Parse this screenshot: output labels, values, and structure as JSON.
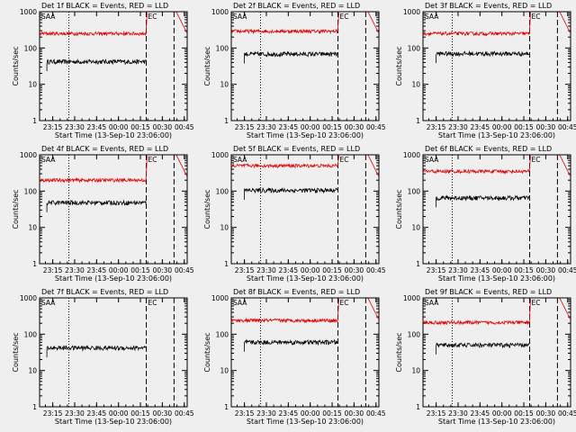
{
  "chart_data": {
    "type": "line",
    "scale_y": "log",
    "ylim": [
      1,
      1000
    ],
    "y_ticks": [
      "1",
      "10",
      "100",
      "1000"
    ],
    "x_ticks": [
      "23:15",
      "23:30",
      "23:45",
      "00:00",
      "00:15",
      "00:30",
      "00:45"
    ],
    "x_tick_times": [
      "2010-09-13T23:15",
      "2010-09-13T23:30",
      "2010-09-13T23:45",
      "2010-09-14T00:00",
      "2010-09-14T00:15",
      "2010-09-14T00:30",
      "2010-09-14T00:45"
    ],
    "x_range": [
      "2010-09-13T23:06",
      "2010-09-14T00:47"
    ],
    "ylabel": "Counts/sec",
    "grid": false,
    "panel_markers": [
      "SAA",
      "EC"
    ],
    "markers": {
      "dotted": "2010-09-13T23:26",
      "dashed": [
        "2010-09-14T00:19",
        "2010-09-14T00:38"
      ]
    },
    "panels": [
      {
        "title": "Det 1f BLACK = Events, RED = LLD",
        "xlabel": "Start Time (13-Sep-10 23:06:00)",
        "red": 250,
        "black": 42,
        "black_start": "2010-09-13T23:11"
      },
      {
        "title": "Det 2f BLACK = Events, RED = LLD",
        "xlabel": "Start Time (13-Sep-10 23:06:00)",
        "red": 290,
        "black": 68,
        "black_start": "2010-09-13T23:15"
      },
      {
        "title": "Det 3f BLACK = Events, RED = LLD",
        "xlabel": "Start Time (13-Sep-10 23:06:00)",
        "red": 250,
        "black": 70,
        "black_start": "2010-09-13T23:15"
      },
      {
        "title": "Det 4f BLACK = Events, RED = LLD",
        "xlabel": "Start Time (13-Sep-10 23:06:00)",
        "red": 200,
        "black": 48,
        "black_start": "2010-09-13T23:11"
      },
      {
        "title": "Det 5f BLACK = Events, RED = LLD",
        "xlabel": "Start Time (13-Sep-10 23:06:00)",
        "red": 500,
        "black": 105,
        "black_start": "2010-09-13T23:15"
      },
      {
        "title": "Det 6f BLACK = Events, RED = LLD",
        "xlabel": "Start Time (13-Sep-10 23:06:00)",
        "red": 350,
        "black": 65,
        "black_start": "2010-09-13T23:15"
      },
      {
        "title": "Det 7f BLACK = Events, RED = LLD",
        "xlabel": "Start Time (13-Sep-10 23:06:00)",
        "red": null,
        "black": 42,
        "black_start": "2010-09-13T23:11"
      },
      {
        "title": "Det 8f BLACK = Events, RED = LLD",
        "xlabel": "Start Time (13-Sep-10 23:06:00)",
        "red": 240,
        "black": 60,
        "black_start": "2010-09-13T23:15"
      },
      {
        "title": "Det 9f BLACK = Events, RED = LLD",
        "xlabel": "Start Time (13-Sep-10 23:06:00)",
        "red": 210,
        "black": 50,
        "black_start": "2010-09-13T23:15"
      }
    ],
    "colors": {
      "events": "#000000",
      "lld": "#dd0000",
      "background": "#efefef"
    }
  }
}
